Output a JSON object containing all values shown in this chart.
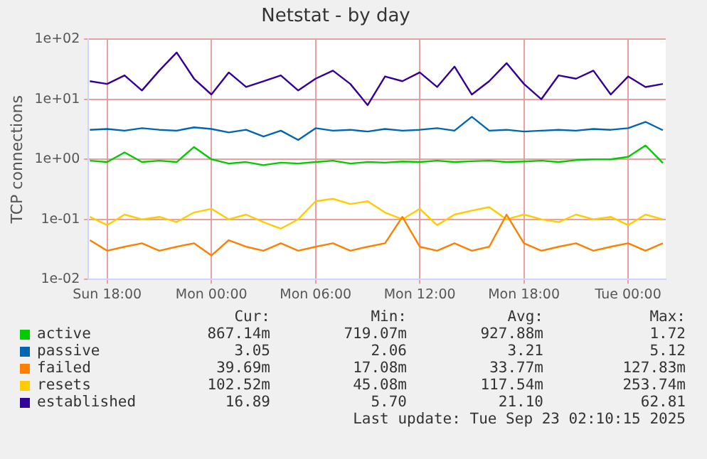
{
  "chart_data": {
    "type": "line",
    "title": "Netstat - by day",
    "ylabel": "TCP connections",
    "log": "y",
    "grid": true,
    "legend": "bottom",
    "marker": "none",
    "line_style": "solid",
    "x": [
      "2025-09-21T17:00",
      "2025-09-21T18:00",
      "2025-09-21T19:00",
      "2025-09-21T20:00",
      "2025-09-21T21:00",
      "2025-09-21T22:00",
      "2025-09-21T23:00",
      "2025-09-22T00:00",
      "2025-09-22T01:00",
      "2025-09-22T02:00",
      "2025-09-22T03:00",
      "2025-09-22T04:00",
      "2025-09-22T05:00",
      "2025-09-22T06:00",
      "2025-09-22T07:00",
      "2025-09-22T08:00",
      "2025-09-22T09:00",
      "2025-09-22T10:00",
      "2025-09-22T11:00",
      "2025-09-22T12:00",
      "2025-09-22T13:00",
      "2025-09-22T14:00",
      "2025-09-22T15:00",
      "2025-09-22T16:00",
      "2025-09-22T17:00",
      "2025-09-22T18:00",
      "2025-09-22T19:00",
      "2025-09-22T20:00",
      "2025-09-22T21:00",
      "2025-09-22T22:00",
      "2025-09-22T23:00",
      "2025-09-23T00:00",
      "2025-09-23T01:00",
      "2025-09-23T02:00"
    ],
    "xlim": [
      "2025-09-21T16:55",
      "2025-09-23T02:10"
    ],
    "xticks": [
      {
        "value": "2025-09-21T18:00",
        "label": "Sun 18:00"
      },
      {
        "value": "2025-09-22T00:00",
        "label": "Mon 00:00"
      },
      {
        "value": "2025-09-22T06:00",
        "label": "Mon 06:00"
      },
      {
        "value": "2025-09-22T12:00",
        "label": "Mon 12:00"
      },
      {
        "value": "2025-09-22T18:00",
        "label": "Mon 18:00"
      },
      {
        "value": "2025-09-23T00:00",
        "label": "Tue 00:00"
      }
    ],
    "ylim": [
      0.01,
      100
    ],
    "yticks": [
      {
        "value": 0.01,
        "label": "1e-02"
      },
      {
        "value": 0.1,
        "label": "1e-01"
      },
      {
        "value": 1,
        "label": "1e+00"
      },
      {
        "value": 10,
        "label": "1e+01"
      },
      {
        "value": 100,
        "label": "1e+02"
      }
    ],
    "series": [
      {
        "name": "active",
        "color": "#00cc00",
        "values": [
          0.95,
          0.9,
          1.3,
          0.9,
          0.95,
          0.9,
          1.6,
          1.0,
          0.85,
          0.9,
          0.8,
          0.88,
          0.85,
          0.9,
          0.95,
          0.85,
          0.9,
          0.88,
          0.92,
          0.9,
          0.95,
          0.9,
          0.93,
          0.95,
          0.9,
          0.92,
          0.95,
          0.9,
          0.97,
          1.0,
          1.0,
          1.1,
          1.7,
          0.87
        ]
      },
      {
        "name": "passive",
        "color": "#0066b3",
        "values": [
          3.1,
          3.2,
          3.0,
          3.3,
          3.1,
          3.0,
          3.4,
          3.2,
          2.8,
          3.1,
          2.4,
          3.0,
          2.1,
          3.3,
          3.0,
          3.1,
          2.9,
          3.2,
          3.0,
          3.1,
          3.3,
          3.0,
          5.1,
          3.0,
          3.1,
          2.9,
          3.0,
          3.1,
          3.0,
          3.2,
          3.1,
          3.3,
          4.2,
          3.05
        ]
      },
      {
        "name": "failed",
        "color": "#ff8000",
        "values": [
          0.045,
          0.03,
          0.035,
          0.04,
          0.03,
          0.035,
          0.04,
          0.025,
          0.045,
          0.035,
          0.03,
          0.04,
          0.03,
          0.035,
          0.04,
          0.03,
          0.035,
          0.04,
          0.11,
          0.035,
          0.03,
          0.04,
          0.03,
          0.035,
          0.12,
          0.04,
          0.03,
          0.035,
          0.04,
          0.03,
          0.035,
          0.04,
          0.03,
          0.04
        ]
      },
      {
        "name": "resets",
        "color": "#ffcc00",
        "values": [
          0.11,
          0.08,
          0.12,
          0.1,
          0.11,
          0.09,
          0.13,
          0.15,
          0.1,
          0.12,
          0.09,
          0.07,
          0.1,
          0.2,
          0.22,
          0.18,
          0.2,
          0.13,
          0.1,
          0.15,
          0.08,
          0.12,
          0.14,
          0.16,
          0.1,
          0.12,
          0.1,
          0.09,
          0.12,
          0.1,
          0.11,
          0.08,
          0.12,
          0.1
        ]
      },
      {
        "name": "established",
        "color": "#330099",
        "values": [
          20,
          18,
          25,
          14,
          30,
          60,
          22,
          12,
          28,
          16,
          20,
          25,
          14,
          22,
          30,
          18,
          8,
          24,
          20,
          28,
          16,
          35,
          12,
          20,
          40,
          18,
          10,
          25,
          22,
          30,
          12,
          24,
          16,
          18
        ]
      }
    ],
    "annotations": [
      "Cur:",
      "Min:",
      "Avg:",
      "Max:",
      "867.14m",
      "719.07m",
      "927.88m",
      "1.72",
      "3.05",
      "2.06",
      "3.21",
      "5.12",
      "39.69m",
      "17.08m",
      "33.77m",
      "127.83m",
      "102.52m",
      "45.08m",
      "117.54m",
      "253.74m",
      "16.89",
      "5.70",
      "21.10",
      "62.81",
      "Last update: Tue Sep 23 02:10:15 2025"
    ]
  }
}
